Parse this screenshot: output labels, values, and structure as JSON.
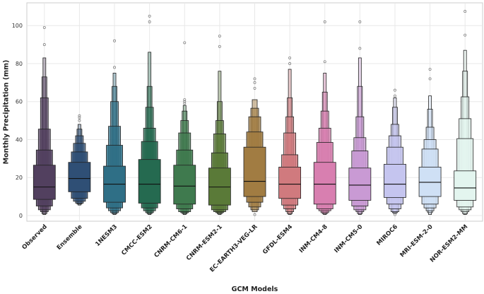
{
  "chart_data": {
    "type": "boxen",
    "title": "",
    "xlabel": "GCM Models",
    "ylabel": "Monthly Precipitation (mm)",
    "ylim": [
      -3,
      112
    ],
    "yticks": [
      0,
      20,
      40,
      60,
      80,
      100
    ],
    "grid": true,
    "legend": "none",
    "categories": [
      "Observed",
      "Ensemble",
      "1NESM3",
      "CMCC-ESM2",
      "CNRM-CM6-1",
      "CNRM-ESM2-1",
      "EC-EARTH3-VEG-LR",
      "GFDL-ESM4",
      "INM-CM4-8",
      "INM-CM5-0",
      "MIROC6",
      "MRI-ESM-2-0",
      "NOR-ESM2-MM"
    ],
    "colors": [
      "#52405f",
      "#2f4f75",
      "#2f6f86",
      "#256a50",
      "#3f7a4e",
      "#5a7a38",
      "#a17c42",
      "#d07a7e",
      "#d87fb0",
      "#c99ad4",
      "#c5c5ef",
      "#cfe0f5",
      "#e3f5ef"
    ],
    "series": [
      {
        "name": "Observed",
        "levels": [
          [
            8.5,
            26.5
          ],
          [
            5,
            34.5
          ],
          [
            3,
            45.5
          ],
          [
            2,
            62
          ],
          [
            1,
            73
          ],
          [
            0.5,
            83
          ]
        ],
        "median": 15,
        "outliers": [
          90,
          99
        ]
      },
      {
        "name": "Ensemble",
        "levels": [
          [
            12.5,
            28
          ],
          [
            9,
            33.5
          ],
          [
            7.5,
            38
          ],
          [
            6.5,
            42
          ],
          [
            6,
            45.5
          ],
          [
            5.5,
            48
          ]
        ],
        "median": 19.5,
        "outliers": [
          50,
          51.5,
          52.5
        ]
      },
      {
        "name": "1NESM3",
        "levels": [
          [
            7,
            26
          ],
          [
            4,
            37
          ],
          [
            2.5,
            47
          ],
          [
            1.5,
            60
          ],
          [
            1,
            68
          ],
          [
            0.5,
            75
          ]
        ],
        "median": 16.5,
        "outliers": [
          78,
          92
        ]
      },
      {
        "name": "CMCC-ESM2",
        "levels": [
          [
            6.5,
            29.5
          ],
          [
            4,
            39
          ],
          [
            2.5,
            46
          ],
          [
            1.5,
            57
          ],
          [
            1,
            68
          ],
          [
            0.5,
            86
          ]
        ],
        "median": 16.5,
        "outliers": [
          102,
          105
        ]
      },
      {
        "name": "CNRM-CM6-1",
        "levels": [
          [
            6,
            26.5
          ],
          [
            3.5,
            34.5
          ],
          [
            2,
            43.5
          ],
          [
            1.5,
            50
          ],
          [
            1,
            55
          ],
          [
            0.5,
            58
          ]
        ],
        "median": 15.5,
        "outliers": [
          59,
          60,
          61,
          91
        ]
      },
      {
        "name": "CNRM-ESM2-1",
        "levels": [
          [
            5.5,
            25
          ],
          [
            3,
            33
          ],
          [
            2,
            43
          ],
          [
            1.5,
            50
          ],
          [
            1,
            60
          ],
          [
            0.5,
            76
          ]
        ],
        "median": 15,
        "outliers": [
          89,
          94.5
        ]
      },
      {
        "name": "EC-EARTH3-VEG-LR",
        "levels": [
          [
            10,
            36
          ],
          [
            7,
            44
          ],
          [
            4.5,
            52
          ],
          [
            3,
            56.5
          ],
          [
            2,
            61
          ]
        ],
        "median": 18,
        "outliers": [
          0.5,
          67,
          70,
          72
        ]
      },
      {
        "name": "GFDL-ESM4",
        "levels": [
          [
            9,
            25.5
          ],
          [
            5.5,
            32
          ],
          [
            3.5,
            43.5
          ],
          [
            2,
            52
          ],
          [
            1,
            62
          ],
          [
            0.5,
            77
          ]
        ],
        "median": 16.5,
        "outliers": [
          80,
          83
        ]
      },
      {
        "name": "INM-CM4-8",
        "levels": [
          [
            6,
            28
          ],
          [
            3.5,
            38.5
          ],
          [
            2.5,
            46
          ],
          [
            1.5,
            55
          ],
          [
            1,
            65
          ],
          [
            0.5,
            75
          ]
        ],
        "median": 16.5,
        "outliers": [
          81,
          102
        ]
      },
      {
        "name": "INM-CM5-0",
        "levels": [
          [
            8,
            25
          ],
          [
            5,
            34
          ],
          [
            3,
            41
          ],
          [
            2,
            52
          ],
          [
            1,
            68
          ],
          [
            0.5,
            83
          ]
        ],
        "median": 16,
        "outliers": [
          88,
          102
        ]
      },
      {
        "name": "MIROC6",
        "levels": [
          [
            9.5,
            27
          ],
          [
            6,
            36
          ],
          [
            3.5,
            42
          ],
          [
            2,
            48
          ],
          [
            1.5,
            57
          ],
          [
            1,
            62
          ]
        ],
        "median": 16.5,
        "outliers": [
          0.5,
          63,
          66
        ]
      },
      {
        "name": "MRI-ESM-2-0",
        "levels": [
          [
            10,
            25.5
          ],
          [
            6,
            35
          ],
          [
            4,
            40
          ],
          [
            2.5,
            46.5
          ],
          [
            1.5,
            56
          ],
          [
            0.5,
            63
          ]
        ],
        "median": 17.5,
        "outliers": [
          72,
          77
        ]
      },
      {
        "name": "NOR-ESM2-MM",
        "levels": [
          [
            8,
            23.5
          ],
          [
            4.5,
            40.5
          ],
          [
            3,
            51
          ],
          [
            2,
            62.5
          ],
          [
            1,
            76
          ],
          [
            0.5,
            87
          ]
        ],
        "median": 14.5,
        "outliers": [
          95,
          107.5
        ]
      }
    ]
  }
}
